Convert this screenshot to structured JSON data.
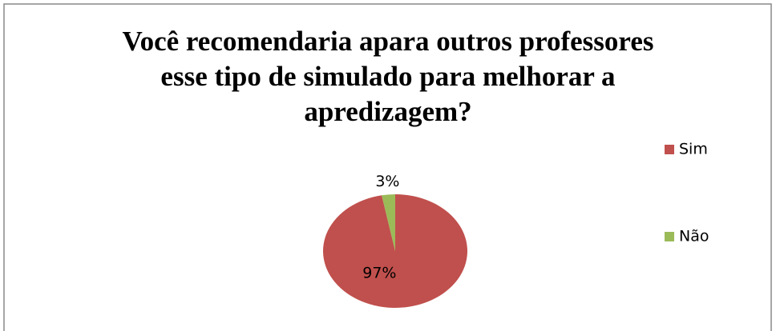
{
  "chart_data": {
    "type": "pie",
    "title": "Você recomendaria apara outros professores esse tipo de simulado para melhorar a apredizagem?",
    "categories": [
      "Sim",
      "Não"
    ],
    "values": [
      97,
      3
    ],
    "value_labels": [
      "97%",
      "3%"
    ],
    "colors": [
      "#c0504d",
      "#9bbb59"
    ],
    "legend": "right"
  }
}
